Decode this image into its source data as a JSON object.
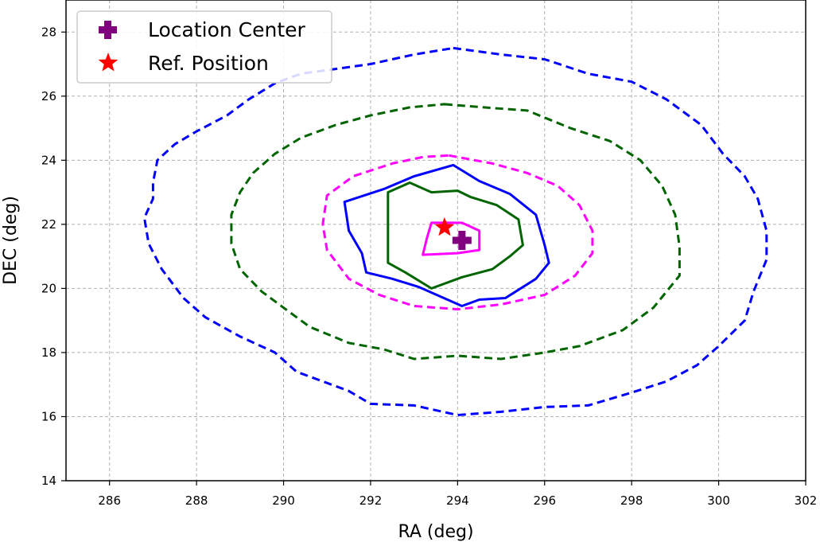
{
  "chart_data": {
    "type": "line",
    "title": "",
    "xlabel": "RA (deg)",
    "ylabel": "DEC (deg)",
    "xlim": [
      285,
      302
    ],
    "ylim": [
      14,
      29
    ],
    "xticks": [
      286,
      288,
      290,
      292,
      294,
      296,
      298,
      300,
      302
    ],
    "yticks": [
      14,
      16,
      18,
      20,
      22,
      24,
      26,
      28
    ],
    "grid": true,
    "legend": {
      "placement": "top-left",
      "entries": [
        {
          "label": "Location Center",
          "marker": "plus",
          "color": "#800080"
        },
        {
          "label": "Ref. Position",
          "marker": "star",
          "color": "#ff0000"
        }
      ]
    },
    "points": {
      "location_center": {
        "x": 294.1,
        "y": 21.5,
        "color": "#800080"
      },
      "ref_position": {
        "x": 293.7,
        "y": 21.9,
        "color": "#ff0000"
      }
    },
    "contours": [
      {
        "id": "blue-dashed",
        "color": "#0000ff",
        "style": "dashed",
        "points": [
          [
            293.9,
            27.5
          ],
          [
            295.0,
            27.3
          ],
          [
            296.0,
            27.15
          ],
          [
            297.0,
            26.7
          ],
          [
            298.0,
            26.45
          ],
          [
            298.8,
            25.9
          ],
          [
            299.6,
            25.1
          ],
          [
            300.1,
            24.2
          ],
          [
            300.6,
            23.5
          ],
          [
            300.9,
            22.8
          ],
          [
            301.1,
            21.8
          ],
          [
            301.1,
            20.9
          ],
          [
            300.8,
            19.9
          ],
          [
            300.6,
            19.0
          ],
          [
            300.0,
            18.2
          ],
          [
            299.5,
            17.6
          ],
          [
            298.8,
            17.1
          ],
          [
            298.0,
            16.75
          ],
          [
            297.0,
            16.35
          ],
          [
            296.0,
            16.3
          ],
          [
            295.0,
            16.15
          ],
          [
            294.0,
            16.05
          ],
          [
            293.0,
            16.35
          ],
          [
            292.0,
            16.4
          ],
          [
            291.5,
            16.8
          ],
          [
            290.9,
            17.1
          ],
          [
            290.3,
            17.4
          ],
          [
            289.8,
            18.0
          ],
          [
            289.0,
            18.5
          ],
          [
            288.2,
            19.1
          ],
          [
            287.7,
            19.7
          ],
          [
            287.2,
            20.6
          ],
          [
            286.9,
            21.4
          ],
          [
            286.8,
            22.2
          ],
          [
            287.0,
            22.8
          ],
          [
            287.0,
            23.3
          ],
          [
            287.1,
            24.0
          ],
          [
            287.5,
            24.5
          ],
          [
            288.0,
            24.9
          ],
          [
            288.7,
            25.4
          ],
          [
            289.2,
            25.9
          ],
          [
            289.8,
            26.4
          ],
          [
            290.4,
            26.7
          ],
          [
            291.2,
            26.85
          ],
          [
            292.0,
            27.0
          ],
          [
            293.0,
            27.3
          ]
        ]
      },
      {
        "id": "green-dashed",
        "color": "#006400",
        "style": "dashed",
        "points": [
          [
            293.7,
            25.75
          ],
          [
            294.6,
            25.65
          ],
          [
            295.6,
            25.55
          ],
          [
            296.6,
            25.0
          ],
          [
            297.5,
            24.6
          ],
          [
            298.2,
            24.0
          ],
          [
            298.7,
            23.2
          ],
          [
            299.0,
            22.3
          ],
          [
            299.1,
            21.3
          ],
          [
            299.1,
            20.4
          ],
          [
            298.5,
            19.4
          ],
          [
            297.8,
            18.7
          ],
          [
            296.8,
            18.2
          ],
          [
            296.0,
            18.0
          ],
          [
            295.0,
            17.8
          ],
          [
            294.0,
            17.9
          ],
          [
            293.0,
            17.8
          ],
          [
            292.3,
            18.1
          ],
          [
            291.5,
            18.3
          ],
          [
            290.6,
            18.8
          ],
          [
            290.0,
            19.4
          ],
          [
            289.5,
            19.9
          ],
          [
            289.0,
            20.6
          ],
          [
            288.8,
            21.4
          ],
          [
            288.8,
            22.3
          ],
          [
            289.0,
            23.0
          ],
          [
            289.3,
            23.6
          ],
          [
            289.8,
            24.2
          ],
          [
            290.4,
            24.7
          ],
          [
            291.2,
            25.1
          ],
          [
            292.0,
            25.4
          ],
          [
            292.9,
            25.65
          ]
        ]
      },
      {
        "id": "magenta-dashed",
        "color": "#ff00ff",
        "style": "dashed",
        "points": [
          [
            293.8,
            24.15
          ],
          [
            294.8,
            23.9
          ],
          [
            295.6,
            23.6
          ],
          [
            296.3,
            23.2
          ],
          [
            296.8,
            22.6
          ],
          [
            297.1,
            21.8
          ],
          [
            297.1,
            21.1
          ],
          [
            296.7,
            20.4
          ],
          [
            296.0,
            19.8
          ],
          [
            295.0,
            19.5
          ],
          [
            294.0,
            19.35
          ],
          [
            293.0,
            19.45
          ],
          [
            292.2,
            19.8
          ],
          [
            291.5,
            20.3
          ],
          [
            291.0,
            21.2
          ],
          [
            290.9,
            22.0
          ],
          [
            291.0,
            22.9
          ],
          [
            291.6,
            23.5
          ],
          [
            292.5,
            23.9
          ],
          [
            293.2,
            24.1
          ]
        ]
      },
      {
        "id": "blue-solid",
        "color": "#0000ff",
        "style": "solid",
        "points": [
          [
            293.9,
            23.85
          ],
          [
            294.5,
            23.35
          ],
          [
            295.2,
            22.95
          ],
          [
            295.8,
            22.3
          ],
          [
            296.0,
            21.35
          ],
          [
            296.1,
            20.8
          ],
          [
            295.8,
            20.3
          ],
          [
            295.1,
            19.7
          ],
          [
            294.5,
            19.65
          ],
          [
            294.1,
            19.45
          ],
          [
            293.1,
            20.05
          ],
          [
            292.5,
            20.3
          ],
          [
            291.9,
            20.5
          ],
          [
            291.8,
            21.1
          ],
          [
            291.5,
            21.8
          ],
          [
            291.4,
            22.7
          ],
          [
            292.3,
            23.1
          ],
          [
            293.0,
            23.5
          ]
        ]
      },
      {
        "id": "green-solid",
        "color": "#006400",
        "style": "solid",
        "points": [
          [
            292.9,
            23.3
          ],
          [
            293.4,
            23.0
          ],
          [
            294.0,
            23.05
          ],
          [
            294.3,
            22.85
          ],
          [
            294.9,
            22.6
          ],
          [
            295.4,
            22.15
          ],
          [
            295.5,
            21.35
          ],
          [
            295.2,
            21.0
          ],
          [
            294.8,
            20.6
          ],
          [
            294.1,
            20.35
          ],
          [
            293.4,
            20.0
          ],
          [
            292.8,
            20.5
          ],
          [
            292.4,
            20.8
          ],
          [
            292.4,
            21.85
          ],
          [
            292.4,
            23.0
          ]
        ]
      },
      {
        "id": "magenta-solid",
        "color": "#ff00ff",
        "style": "solid",
        "points": [
          [
            293.4,
            22.05
          ],
          [
            294.1,
            22.05
          ],
          [
            294.5,
            21.8
          ],
          [
            294.5,
            21.2
          ],
          [
            294.0,
            21.1
          ],
          [
            293.2,
            21.05
          ],
          [
            293.3,
            21.6
          ]
        ]
      }
    ]
  }
}
